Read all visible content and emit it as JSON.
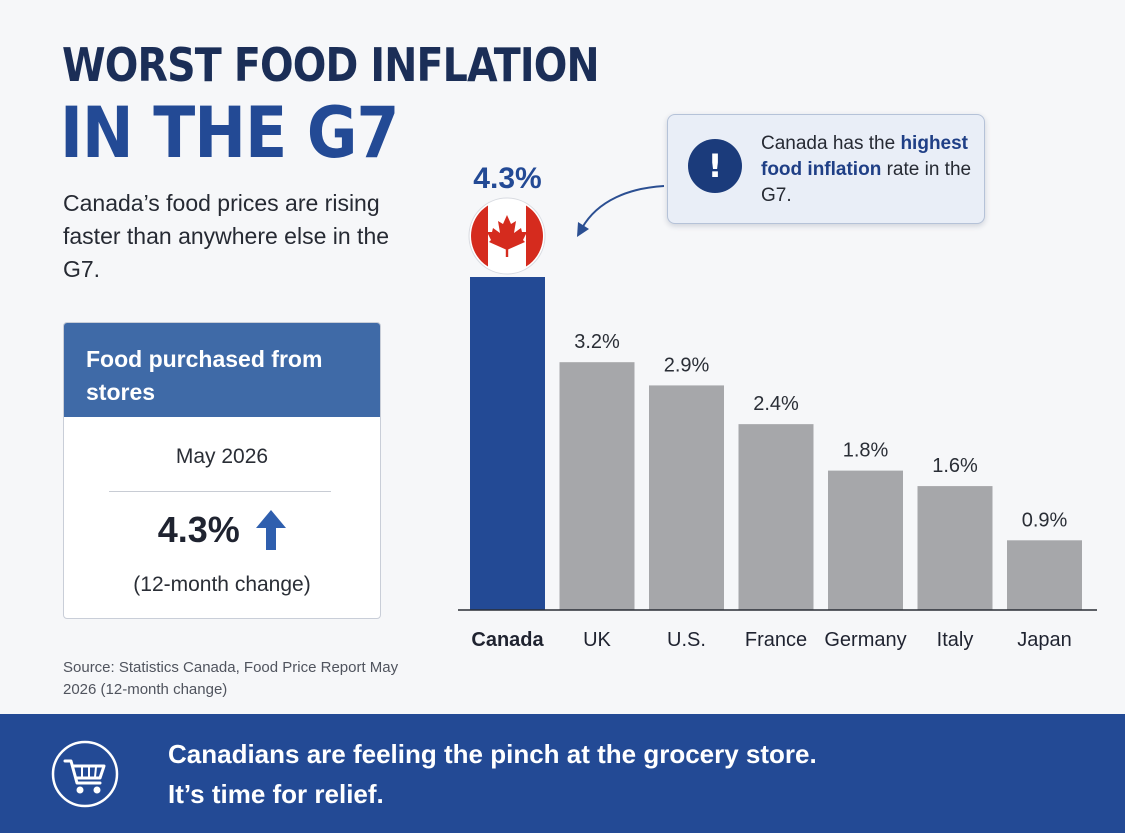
{
  "header": {
    "title_line1": "WORST FOOD INFLATION",
    "title_line2": "IN THE G7",
    "subtitle": "Canada’s food prices are rising faster than anywhere else in the G7."
  },
  "card": {
    "heading": "Food purchased from stores",
    "date": "May 2026",
    "value": "4.3%",
    "trend_icon": "arrow-up-icon",
    "note": "(12-month change)"
  },
  "source": "Source: Statistics Canada, Food Price Report May 2026 (12-month change)",
  "callout": {
    "icon": "exclamation-icon",
    "text_before": "Canada has the ",
    "text_highlight": "highest food inflation",
    "text_after": " rate in the G7."
  },
  "footer": {
    "icon": "shopping-cart-icon",
    "line1": "Canadians are feeling the pinch at the grocery store.",
    "line2": "It’s time for relief."
  },
  "colors": {
    "title_dark": "#1b2e57",
    "accent_blue": "#234a95",
    "bar_highlight": "#234a95",
    "bar_default": "#a6a7aa",
    "flag_red": "#d52b1e"
  },
  "chart_data": {
    "type": "bar",
    "categories": [
      "Canada",
      "UK",
      "U.S.",
      "France",
      "Germany",
      "Italy",
      "Japan"
    ],
    "values": [
      4.3,
      3.2,
      2.9,
      2.4,
      1.8,
      1.6,
      0.9
    ],
    "value_labels": [
      "4.3%",
      "3.2%",
      "2.9%",
      "2.4%",
      "1.8%",
      "1.6%",
      "0.9%"
    ],
    "highlight_category": "Canada",
    "highlight_icon": "canada-flag-icon",
    "ylim": [
      0,
      4.3
    ],
    "y_axis_visible": false,
    "grid": false,
    "legend": "none"
  }
}
